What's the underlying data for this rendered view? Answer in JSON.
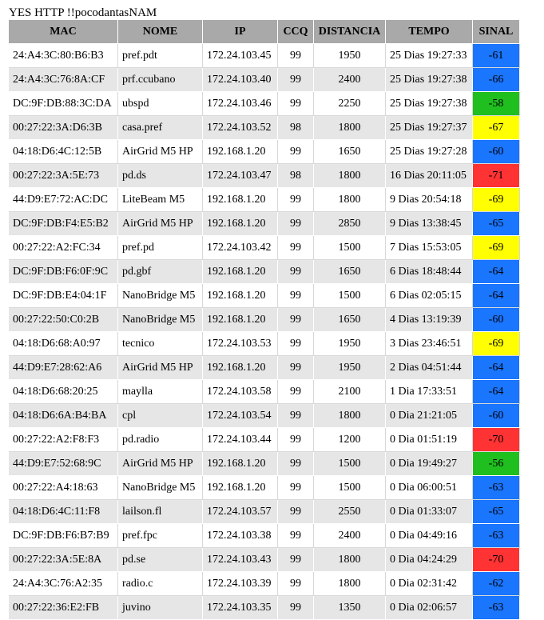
{
  "page": {
    "title": "YES HTTP !!pocodantasNAM"
  },
  "colors": {
    "header_bg": "#a9a9a9",
    "row_alt_bg": "#e6e6e6",
    "signal_blue": "#1a75ff",
    "signal_green": "#1fbf1f",
    "signal_yellow": "#ffff00",
    "signal_red": "#ff3333"
  },
  "table": {
    "headers": [
      "MAC",
      "NOME",
      "IP",
      "CCQ",
      "DISTANCIA",
      "TEMPO",
      "SINAL"
    ],
    "rows": [
      {
        "mac": "24:A4:3C:80:B6:B3",
        "nome": "pref.pdt",
        "ip": "172.24.103.45",
        "ccq": "99",
        "distancia": "1950",
        "tempo": "25 Dias 19:27:33",
        "sinal": "-61",
        "color": "blue"
      },
      {
        "mac": "24:A4:3C:76:8A:CF",
        "nome": "prf.ccubano",
        "ip": "172.24.103.40",
        "ccq": "99",
        "distancia": "2400",
        "tempo": "25 Dias 19:27:38",
        "sinal": "-66",
        "color": "blue"
      },
      {
        "mac": "DC:9F:DB:88:3C:DA",
        "nome": "ubspd",
        "ip": "172.24.103.46",
        "ccq": "99",
        "distancia": "2250",
        "tempo": "25 Dias 19:27:38",
        "sinal": "-58",
        "color": "green"
      },
      {
        "mac": "00:27:22:3A:D6:3B",
        "nome": "casa.pref",
        "ip": "172.24.103.52",
        "ccq": "98",
        "distancia": "1800",
        "tempo": "25 Dias 19:27:37",
        "sinal": "-67",
        "color": "yellow"
      },
      {
        "mac": "04:18:D6:4C:12:5B",
        "nome": "AirGrid M5 HP",
        "ip": "192.168.1.20",
        "ccq": "99",
        "distancia": "1650",
        "tempo": "25 Dias 19:27:28",
        "sinal": "-60",
        "color": "blue"
      },
      {
        "mac": "00:27:22:3A:5E:73",
        "nome": "pd.ds",
        "ip": "172.24.103.47",
        "ccq": "98",
        "distancia": "1800",
        "tempo": "16 Dias 20:11:05",
        "sinal": "-71",
        "color": "red"
      },
      {
        "mac": "44:D9:E7:72:AC:DC",
        "nome": "LiteBeam M5",
        "ip": "192.168.1.20",
        "ccq": "99",
        "distancia": "1800",
        "tempo": "9 Dias 20:54:18",
        "sinal": "-69",
        "color": "yellow"
      },
      {
        "mac": "DC:9F:DB:F4:E5:B2",
        "nome": "AirGrid M5 HP",
        "ip": "192.168.1.20",
        "ccq": "99",
        "distancia": "2850",
        "tempo": "9 Dias 13:38:45",
        "sinal": "-65",
        "color": "blue"
      },
      {
        "mac": "00:27:22:A2:FC:34",
        "nome": "pref.pd",
        "ip": "172.24.103.42",
        "ccq": "99",
        "distancia": "1500",
        "tempo": "7 Dias 15:53:05",
        "sinal": "-69",
        "color": "yellow"
      },
      {
        "mac": "DC:9F:DB:F6:0F:9C",
        "nome": "pd.gbf",
        "ip": "192.168.1.20",
        "ccq": "99",
        "distancia": "1650",
        "tempo": "6 Dias 18:48:44",
        "sinal": "-64",
        "color": "blue"
      },
      {
        "mac": "DC:9F:DB:E4:04:1F",
        "nome": "NanoBridge M5",
        "ip": "192.168.1.20",
        "ccq": "99",
        "distancia": "1500",
        "tempo": "6 Dias 02:05:15",
        "sinal": "-64",
        "color": "blue"
      },
      {
        "mac": "00:27:22:50:C0:2B",
        "nome": "NanoBridge M5",
        "ip": "192.168.1.20",
        "ccq": "99",
        "distancia": "1650",
        "tempo": "4 Dias 13:19:39",
        "sinal": "-60",
        "color": "blue"
      },
      {
        "mac": "04:18:D6:68:A0:97",
        "nome": "tecnico",
        "ip": "172.24.103.53",
        "ccq": "99",
        "distancia": "1950",
        "tempo": "3 Dias 23:46:51",
        "sinal": "-69",
        "color": "yellow"
      },
      {
        "mac": "44:D9:E7:28:62:A6",
        "nome": "AirGrid M5 HP",
        "ip": "192.168.1.20",
        "ccq": "99",
        "distancia": "1950",
        "tempo": "2 Dias 04:51:44",
        "sinal": "-64",
        "color": "blue"
      },
      {
        "mac": "04:18:D6:68:20:25",
        "nome": "maylla",
        "ip": "172.24.103.58",
        "ccq": "99",
        "distancia": "2100",
        "tempo": "1 Dia 17:33:51",
        "sinal": "-64",
        "color": "blue"
      },
      {
        "mac": "04:18:D6:6A:B4:BA",
        "nome": "cpl",
        "ip": "172.24.103.54",
        "ccq": "99",
        "distancia": "1800",
        "tempo": "0 Dia 21:21:05",
        "sinal": "-60",
        "color": "blue"
      },
      {
        "mac": "00:27:22:A2:F8:F3",
        "nome": "pd.radio",
        "ip": "172.24.103.44",
        "ccq": "99",
        "distancia": "1200",
        "tempo": "0 Dia 01:51:19",
        "sinal": "-70",
        "color": "red"
      },
      {
        "mac": "44:D9:E7:52:68:9C",
        "nome": "AirGrid M5 HP",
        "ip": "192.168.1.20",
        "ccq": "99",
        "distancia": "1500",
        "tempo": "0 Dia 19:49:27",
        "sinal": "-56",
        "color": "green"
      },
      {
        "mac": "00:27:22:A4:18:63",
        "nome": "NanoBridge M5",
        "ip": "192.168.1.20",
        "ccq": "99",
        "distancia": "1500",
        "tempo": "0 Dia 06:00:51",
        "sinal": "-63",
        "color": "blue"
      },
      {
        "mac": "04:18:D6:4C:11:F8",
        "nome": "lailson.fl",
        "ip": "172.24.103.57",
        "ccq": "99",
        "distancia": "2550",
        "tempo": "0 Dia 01:33:07",
        "sinal": "-65",
        "color": "blue"
      },
      {
        "mac": "DC:9F:DB:F6:B7:B9",
        "nome": "pref.fpc",
        "ip": "172.24.103.38",
        "ccq": "99",
        "distancia": "2400",
        "tempo": "0 Dia 04:49:16",
        "sinal": "-63",
        "color": "blue"
      },
      {
        "mac": "00:27:22:3A:5E:8A",
        "nome": "pd.se",
        "ip": "172.24.103.43",
        "ccq": "99",
        "distancia": "1800",
        "tempo": "0 Dia 04:24:29",
        "sinal": "-70",
        "color": "red"
      },
      {
        "mac": "24:A4:3C:76:A2:35",
        "nome": "radio.c",
        "ip": "172.24.103.39",
        "ccq": "99",
        "distancia": "1800",
        "tempo": "0 Dia 02:31:42",
        "sinal": "-62",
        "color": "blue"
      },
      {
        "mac": "00:27:22:36:E2:FB",
        "nome": "juvino",
        "ip": "172.24.103.35",
        "ccq": "99",
        "distancia": "1350",
        "tempo": "0 Dia 02:06:57",
        "sinal": "-63",
        "color": "blue"
      }
    ]
  }
}
